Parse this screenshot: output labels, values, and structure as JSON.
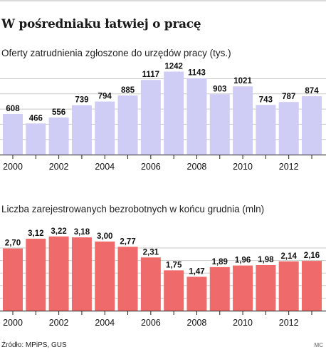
{
  "title": "W pośredniaku łatwiej o pracę",
  "source": "Źródło: MPiPS, GUS",
  "credit": "MC",
  "chart_data": [
    {
      "type": "bar",
      "title": "Oferty zatrudnienia zgłoszone do urzędów pracy (tys.)",
      "categories": [
        "2000",
        "2001",
        "2002",
        "2003",
        "2004",
        "2005",
        "2006",
        "2007",
        "2008",
        "2009",
        "2010",
        "2011",
        "2012",
        "2013"
      ],
      "values": [
        608,
        466,
        556,
        739,
        794,
        885,
        1117,
        1242,
        1143,
        903,
        1021,
        743,
        787,
        874
      ],
      "value_labels": [
        "608",
        "466",
        "556",
        "739",
        "794",
        "885",
        "1117",
        "1242",
        "1143",
        "903",
        "1021",
        "743",
        "787",
        "874"
      ],
      "xticks": [
        "2000",
        "2002",
        "2004",
        "2006",
        "2008",
        "2010",
        "2012"
      ],
      "ylim": [
        0,
        1300
      ],
      "grid": true,
      "color": "#cfcdf6"
    },
    {
      "type": "bar",
      "title": "Liczba zarejestrowanych bezrobotnych w końcu grudnia (mln)",
      "categories": [
        "2000",
        "2001",
        "2002",
        "2003",
        "2004",
        "2005",
        "2006",
        "2007",
        "2008",
        "2009",
        "2010",
        "2011",
        "2012",
        "2013"
      ],
      "values": [
        2.7,
        3.12,
        3.22,
        3.18,
        3.0,
        2.77,
        2.31,
        1.75,
        1.47,
        1.89,
        1.96,
        1.98,
        2.14,
        2.16
      ],
      "value_labels": [
        "2,70",
        "3,12",
        "3,22",
        "3,18",
        "3,00",
        "2,77",
        "2,31",
        "1,75",
        "1,47",
        "1,89",
        "1,96",
        "1,98",
        "2,14",
        "2,16"
      ],
      "xticks": [
        "2000",
        "2002",
        "2004",
        "2006",
        "2008",
        "2010",
        "2012"
      ],
      "ylim": [
        0,
        3.4
      ],
      "grid": true,
      "color": "#ef6b6b"
    }
  ]
}
